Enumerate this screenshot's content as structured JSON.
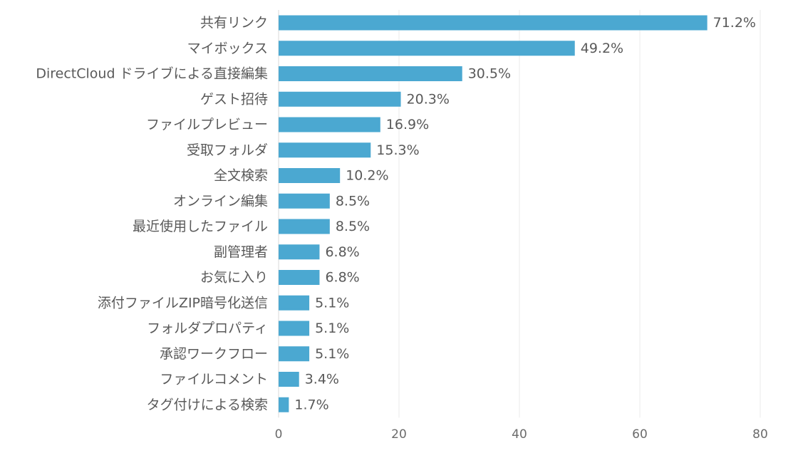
{
  "chart_data": {
    "type": "bar",
    "orientation": "horizontal",
    "categories": [
      "共有リンク",
      "マイボックス",
      "DirectCloud ドライブによる直接編集",
      "ゲスト招待",
      "ファイルプレビュー",
      "受取フォルダ",
      "全文検索",
      "オンライン編集",
      "最近使用したファイル",
      "副管理者",
      "お気に入り",
      "添付ファイルZIP暗号化送信",
      "フォルダプロパティ",
      "承認ワークフロー",
      "ファイルコメント",
      "タグ付けによる検索"
    ],
    "values": [
      71.2,
      49.2,
      30.5,
      20.3,
      16.9,
      15.3,
      10.2,
      8.5,
      8.5,
      6.8,
      6.8,
      5.1,
      5.1,
      5.1,
      3.4,
      1.7
    ],
    "value_labels": [
      "71.2%",
      "49.2%",
      "30.5%",
      "20.3%",
      "16.9%",
      "15.3%",
      "10.2%",
      "8.5%",
      "8.5%",
      "6.8%",
      "6.8%",
      "5.1%",
      "5.1%",
      "5.1%",
      "3.4%",
      "1.7%"
    ],
    "title": "",
    "xlabel": "",
    "ylabel": "",
    "xlim": [
      0,
      80
    ],
    "x_ticks": [
      0,
      20,
      40,
      60,
      80
    ],
    "x_tick_labels": [
      "0",
      "20",
      "40",
      "60",
      "80"
    ],
    "grid": true,
    "legend": "none",
    "colors": {
      "bar": "#4BA8D1",
      "grid": "#ebebeb",
      "axis": "#d9d9d9",
      "text": "#595959"
    }
  }
}
